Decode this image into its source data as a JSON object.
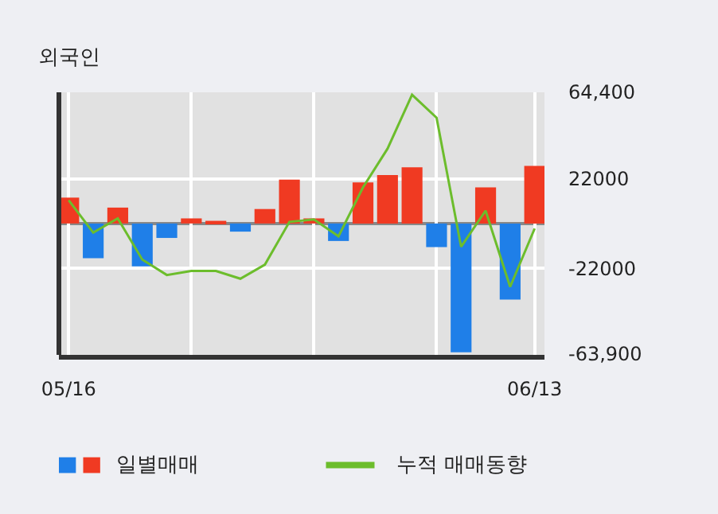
{
  "chart_data": {
    "type": "bar",
    "title": "외국인",
    "categories": [
      "05/16",
      null,
      null,
      null,
      null,
      null,
      null,
      null,
      null,
      null,
      null,
      null,
      null,
      null,
      null,
      null,
      null,
      null,
      null,
      "06/13"
    ],
    "series": [
      {
        "name": "일별매매",
        "colors": [
          "#f03a22",
          "#1f7fe8",
          "#f03a22",
          "#1f7fe8",
          "#1f7fe8",
          "#f03a22",
          "#f03a22",
          "#1f7fe8",
          "#f03a22",
          "#f03a22",
          "#f03a22",
          "#1f7fe8",
          "#f03a22",
          "#f03a22",
          "#f03a22",
          "#1f7fe8",
          "#1f7fe8",
          "#f03a22",
          "#1f7fe8",
          "#f03a22"
        ],
        "values": [
          12700,
          -17000,
          7800,
          -21000,
          -7100,
          2500,
          1300,
          -4000,
          7100,
          21500,
          2500,
          -8600,
          20200,
          23800,
          27600,
          -11600,
          -63200,
          17700,
          -37400,
          28300
        ]
      },
      {
        "name": "누적 매매동향",
        "type": "line",
        "color": "#6cbd2c",
        "values": [
          11400,
          -4500,
          2500,
          -17700,
          -25300,
          -23300,
          -23300,
          -27100,
          -20200,
          800,
          2000,
          -6300,
          17700,
          36700,
          63200,
          51900,
          -11400,
          6300,
          -31100,
          -2500
        ]
      }
    ],
    "ylim": [
      -64500,
      64400
    ],
    "yticks": [
      {
        "value": 64400,
        "label": "64,400"
      },
      22000,
      -22000,
      {
        "value": -63900,
        "label": "-63,900"
      }
    ],
    "ref_lines": [
      {
        "axis": "y",
        "value": 0,
        "color": "#888888"
      }
    ],
    "grid": true,
    "legend": "bottom"
  }
}
